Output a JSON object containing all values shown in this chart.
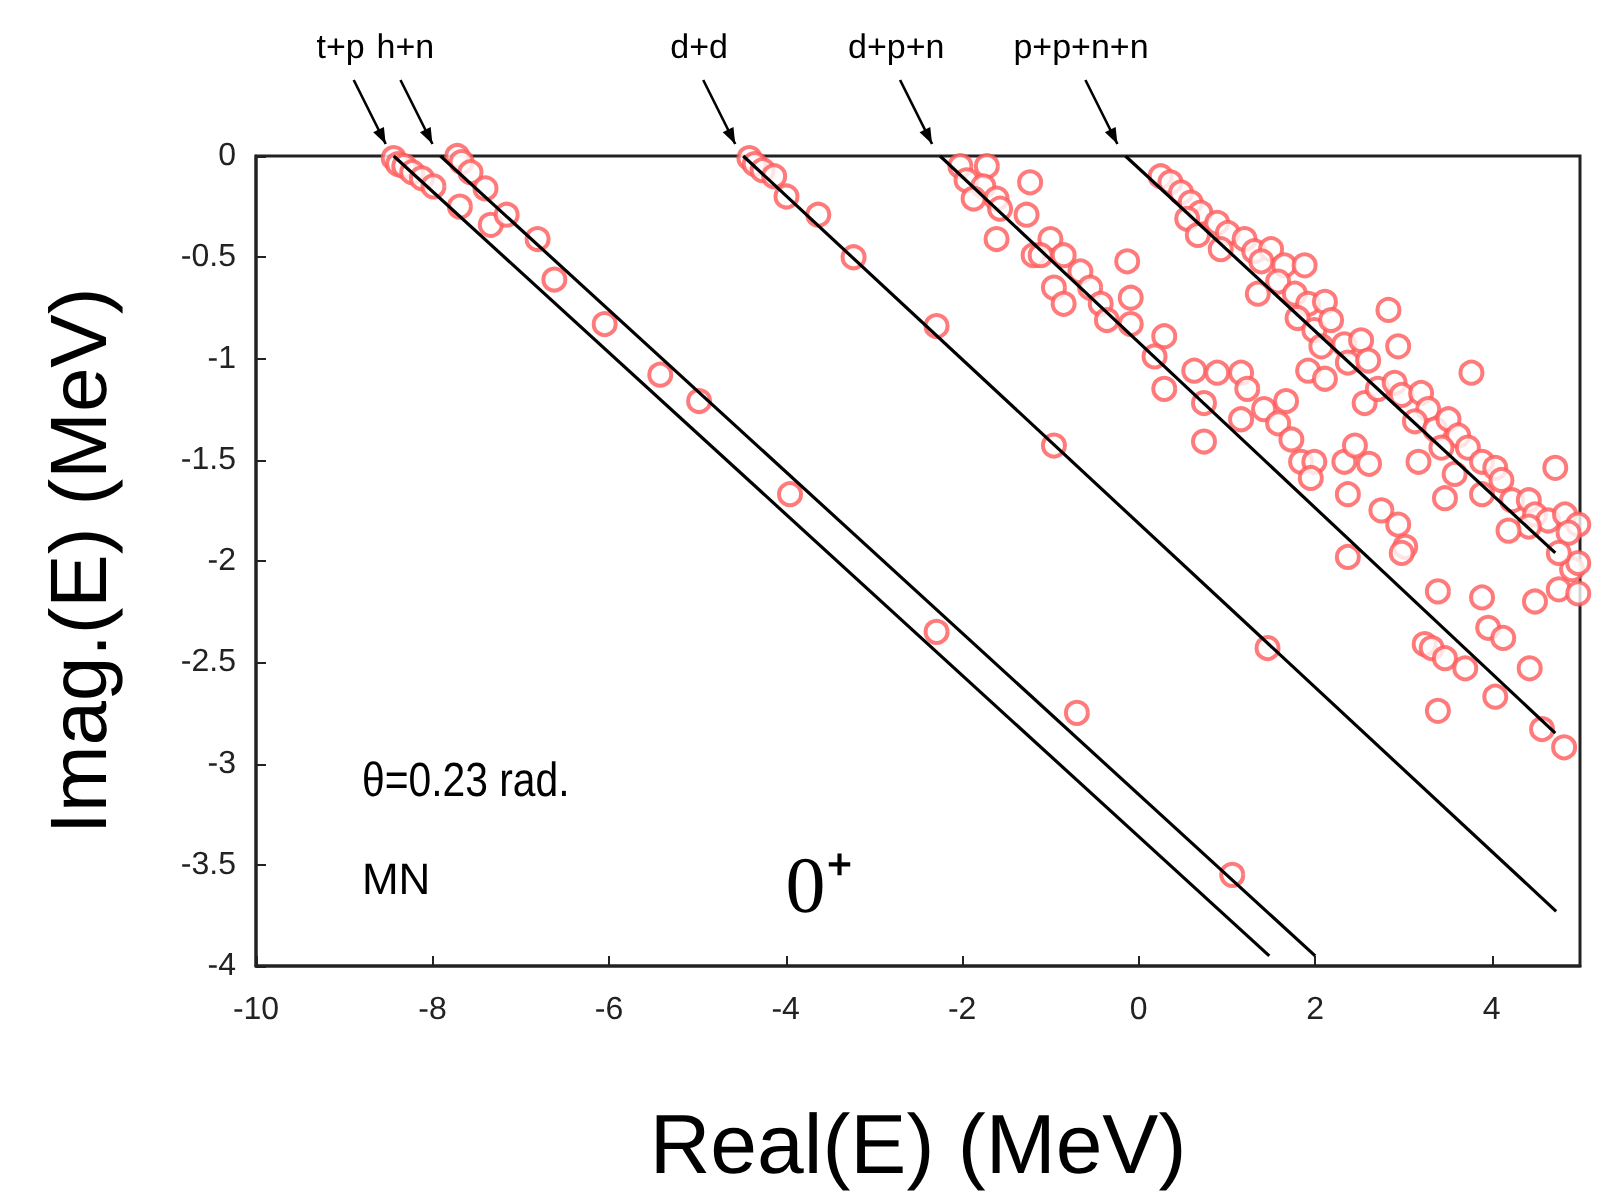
{
  "chart_data": {
    "type": "scatter",
    "xlabel": "Real(E) (MeV)",
    "ylabel": "Imag.(E) (MeV)",
    "xlim": [
      -10,
      5
    ],
    "xticks": [
      -10,
      -8,
      -6,
      -4,
      -2,
      0,
      2,
      4
    ],
    "ylim": [
      -4,
      0
    ],
    "yticks": [
      -4,
      -3.5,
      -3,
      -2.5,
      -2,
      -1.5,
      -1,
      -0.5,
      0
    ],
    "grid": false,
    "marker": "circle",
    "annotations": [
      {
        "text": "t+p",
        "x": -8.44,
        "y": 0
      },
      {
        "text": "h+n",
        "x": -7.91,
        "y": 0
      },
      {
        "text": "d+d",
        "x": -4.48,
        "y": 0
      },
      {
        "text": "d+p+n",
        "x": -2.25,
        "y": 0
      },
      {
        "text": "p+p+n+n",
        "x": -0.15,
        "y": 0
      },
      "θ=0.23 rad.",
      "MN",
      "0⁺"
    ],
    "series": [
      {
        "color": "#ff5a5a",
        "x": [
          -8.44,
          -8.39,
          -8.32,
          -8.23,
          -8.12,
          -7.99,
          -7.69,
          -7.34,
          -7.72,
          -7.67,
          -7.57,
          -7.4,
          -7.16,
          -6.81,
          -6.62,
          -6.05,
          -5.42,
          -4.98,
          -3.95,
          -2.29,
          -0.7,
          1.06,
          -4.41,
          -4.35,
          -4.26,
          -4.13,
          -3.99,
          -3.63,
          -3.23,
          -2.29,
          1.46,
          -0.96,
          -2.02,
          -1.72,
          -1.95,
          -1.76,
          -1.23,
          -1.87,
          -1.61,
          -1.27,
          -1.61,
          -1.19,
          -1.57,
          -1.0,
          -1.11,
          -0.85,
          -0.66,
          -0.13,
          -0.96,
          -0.55,
          -0.85,
          -0.43,
          -0.09,
          -0.36,
          -0.09,
          0.29,
          0.18,
          0.29,
          0.63,
          0.89,
          1.16,
          1.23,
          0.74,
          1.16,
          1.42,
          1.67,
          1.58,
          1.73,
          0.74,
          1.84,
          1.99,
          1.95,
          2.33,
          2.61,
          2.45,
          2.37,
          2.75,
          2.94,
          3.02,
          2.37,
          2.98,
          3.39,
          3.89,
          3.96,
          4.13,
          3.24,
          3.32,
          3.47,
          3.7,
          3.39,
          4.04,
          4.43,
          4.49,
          4.76,
          4.91,
          4.98,
          4.98,
          4.57,
          4.82,
          0.25,
          0.36,
          0.48,
          0.59,
          0.7,
          0.55,
          0.89,
          1.01,
          0.67,
          1.2,
          0.93,
          1.31,
          1.5,
          1.39,
          1.65,
          1.88,
          1.35,
          1.58,
          1.77,
          1.92,
          2.11,
          1.8,
          1.99,
          2.18,
          1.92,
          2.11,
          2.07,
          2.33,
          2.37,
          2.52,
          2.6,
          2.83,
          2.94,
          2.56,
          2.71,
          2.9,
          2.98,
          3.2,
          3.28,
          3.13,
          3.36,
          3.51,
          3.62,
          3.77,
          3.43,
          3.73,
          3.89,
          4.04,
          4.11,
          3.58,
          3.89,
          4.23,
          4.42,
          4.49,
          4.72,
          4.64,
          4.83,
          4.98,
          4.87,
          4.42,
          4.76,
          4.19,
          3.47,
          3.17
        ],
        "values": [
          -0.01,
          -0.04,
          -0.05,
          -0.08,
          -0.11,
          -0.15,
          -0.25,
          -0.34,
          0,
          -0.03,
          -0.08,
          -0.16,
          -0.29,
          -0.41,
          -0.61,
          -0.83,
          -1.08,
          -1.21,
          -1.67,
          -2.35,
          -2.75,
          -3.55,
          -0.01,
          -0.04,
          -0.07,
          -0.1,
          -0.2,
          -0.29,
          -0.5,
          -0.84,
          -2.43,
          -1.43,
          -0.05,
          -0.05,
          -0.12,
          -0.15,
          -0.13,
          -0.21,
          -0.21,
          -0.29,
          -0.41,
          -0.49,
          -0.26,
          -0.41,
          -0.49,
          -0.49,
          -0.57,
          -0.52,
          -0.65,
          -0.65,
          -0.73,
          -0.73,
          -0.7,
          -0.81,
          -0.83,
          -0.89,
          -0.99,
          -1.15,
          -1.06,
          -1.07,
          -1.07,
          -1.15,
          -1.22,
          -1.3,
          -1.25,
          -1.21,
          -1.32,
          -1.4,
          -1.41,
          -1.51,
          -1.51,
          -1.59,
          -1.51,
          -1.52,
          -1.43,
          -1.67,
          -1.75,
          -1.82,
          -1.93,
          -1.98,
          -1.96,
          -2.15,
          -2.18,
          -2.33,
          -2.38,
          -2.41,
          -2.43,
          -2.48,
          -2.53,
          -2.74,
          -2.67,
          -2.53,
          -2.2,
          -2.14,
          -2.04,
          -2.01,
          -2.16,
          -2.83,
          -2.92,
          -0.1,
          -0.13,
          -0.18,
          -0.23,
          -0.28,
          -0.31,
          -0.33,
          -0.38,
          -0.39,
          -0.41,
          -0.46,
          -0.47,
          -0.46,
          -0.52,
          -0.54,
          -0.54,
          -0.68,
          -0.62,
          -0.68,
          -0.73,
          -0.72,
          -0.8,
          -0.86,
          -0.81,
          -1.06,
          -1.1,
          -0.94,
          -0.93,
          -1.02,
          -0.91,
          -1.01,
          -0.76,
          -0.94,
          -1.22,
          -1.15,
          -1.12,
          -1.18,
          -1.17,
          -1.25,
          -1.31,
          -1.35,
          -1.3,
          -1.38,
          -1.07,
          -1.44,
          -1.44,
          -1.51,
          -1.54,
          -1.6,
          -1.57,
          -1.67,
          -1.7,
          -1.7,
          -1.77,
          -1.54,
          -1.8,
          -1.77,
          -1.82,
          -1.86,
          -1.83,
          -1.96,
          -1.85,
          -1.69,
          -1.51
        ]
      },
      {
        "type": "line",
        "color": "#000000",
        "marker": "none",
        "x": [
          -8.44,
          1.48
        ],
        "values": [
          0,
          -3.95
        ]
      },
      {
        "type": "line",
        "color": "#000000",
        "marker": "none",
        "x": [
          -7.91,
          2.0
        ],
        "values": [
          0,
          -3.95
        ]
      },
      {
        "type": "line",
        "color": "#000000",
        "marker": "none",
        "x": [
          -4.48,
          4.73
        ],
        "values": [
          0,
          -3.73
        ]
      },
      {
        "type": "line",
        "color": "#000000",
        "marker": "none",
        "x": [
          -2.25,
          4.72
        ],
        "values": [
          0,
          -2.85
        ]
      },
      {
        "type": "line",
        "color": "#000000",
        "marker": "none",
        "x": [
          -0.15,
          4.72
        ],
        "values": [
          0,
          -1.96
        ]
      }
    ]
  }
}
